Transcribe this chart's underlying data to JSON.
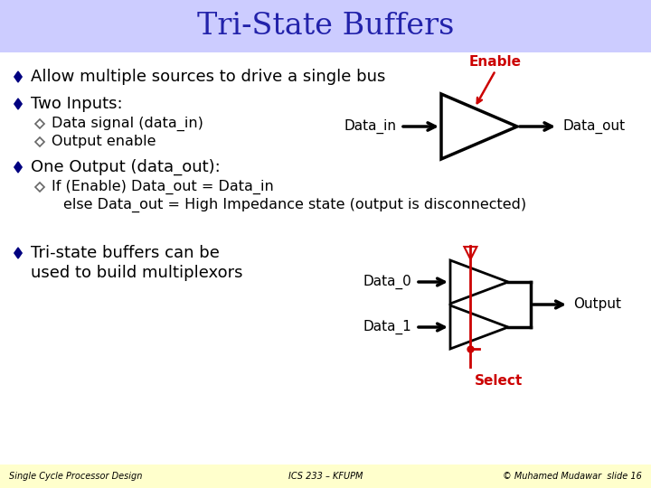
{
  "title": "Tri-State Buffers",
  "title_color": "#2222aa",
  "title_bg": "#ccccff",
  "bg_color": "#ffffff",
  "footer_bg": "#ffffcc",
  "footer_left": "Single Cycle Processor Design",
  "footer_center": "ICS 233 – KFUPM",
  "footer_right": "© Muhamed Mudawar  slide 16",
  "enable_color": "#cc0000",
  "select_color": "#cc0000",
  "text_color": "#000000",
  "bullet_color": "#000080",
  "sub_bullet_color": "#555555"
}
